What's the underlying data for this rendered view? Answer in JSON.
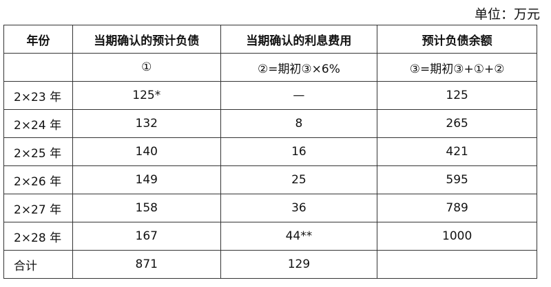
{
  "unit_label": "单位：万元",
  "headers": [
    "年份",
    "当期确认的预计负债",
    "当期确认的利息费用",
    "预计负债余额"
  ],
  "formula_row": [
    "",
    "①",
    "②=期初③×6%",
    "③=期初③+①+②"
  ],
  "rows": [
    [
      "2×23 年",
      "125*",
      "—",
      "125"
    ],
    [
      "2×24 年",
      "132",
      "8",
      "265"
    ],
    [
      "2×25 年",
      "140",
      "16",
      "421"
    ],
    [
      "2×26 年",
      "149",
      "25",
      "595"
    ],
    [
      "2×27 年",
      "158",
      "36",
      "789"
    ],
    [
      "2×28 年",
      "167",
      "44**",
      "1000"
    ]
  ],
  "total_row": [
    "合计",
    "871",
    "129",
    ""
  ]
}
